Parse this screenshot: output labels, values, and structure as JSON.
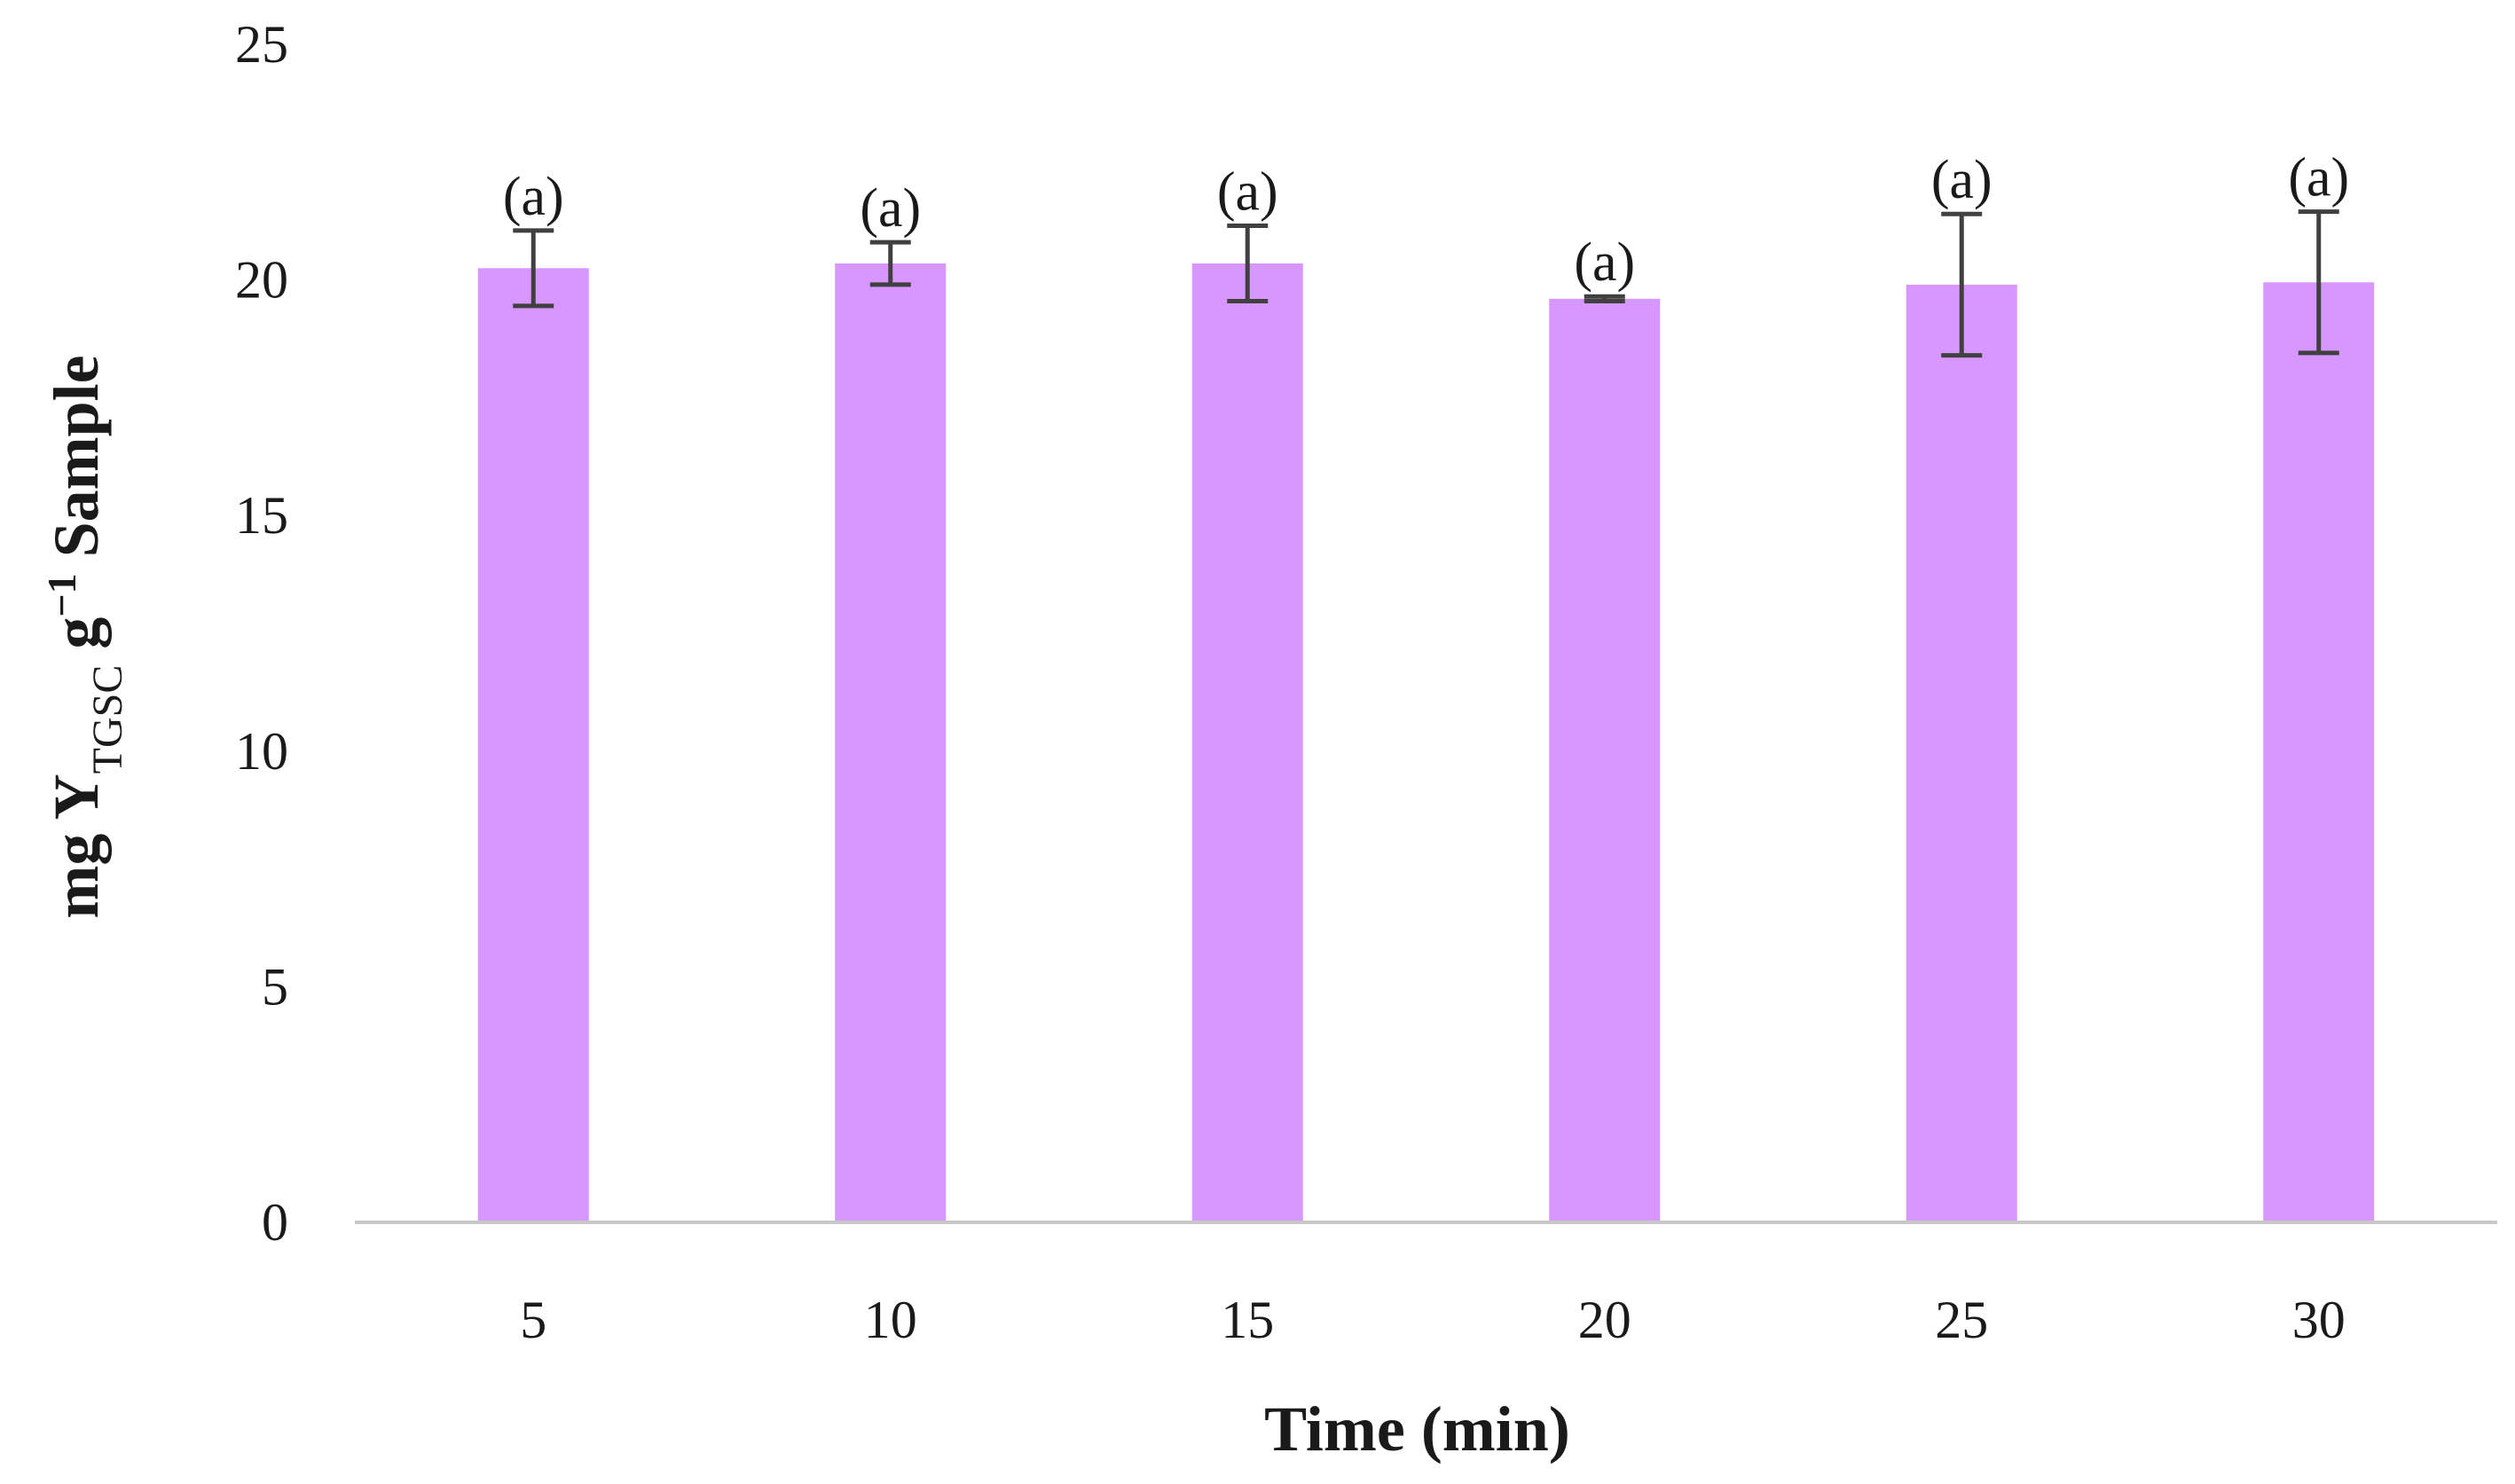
{
  "chart_data": {
    "type": "bar",
    "title": "",
    "xlabel": "Time (min)",
    "ylabel": {
      "prefix": "mg Y",
      "subscript": "TGSC",
      "middle": " g",
      "superscript": "−1",
      "suffix": "  Sample"
    },
    "categories": [
      "5",
      "10",
      "15",
      "20",
      "25",
      "30"
    ],
    "values": [
      20.25,
      20.35,
      20.35,
      19.6,
      19.9,
      19.95
    ],
    "error": [
      0.8,
      0.45,
      0.8,
      0.05,
      1.5,
      1.5
    ],
    "annotations": [
      "(a)",
      "(a)",
      "(a)",
      "(a)",
      "(a)",
      "(a)"
    ],
    "ylim": [
      0,
      25
    ],
    "yticks": [
      0,
      5,
      10,
      15,
      20,
      25
    ],
    "grid": false,
    "legend": "none",
    "colors": {
      "bar": "#D896FF",
      "error_bar": "#404040",
      "axis": "#c8c8c8",
      "text": "#1a1a1a"
    }
  }
}
